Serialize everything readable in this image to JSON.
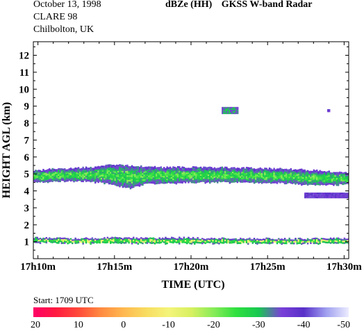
{
  "header": {
    "date": "October 13, 1998",
    "campaign": "CLARE 98",
    "site": "Chilbolton, UK",
    "quantity": "dBZe (HH)",
    "instrument": "GKSS  W-band Radar"
  },
  "chart_data": {
    "type": "heatmap",
    "title": "dBZe (HH)   GKSS  W-band Radar",
    "xlabel": "TIME (UTC)",
    "ylabel": "HEIGHT AGL (km)",
    "xlim_minutes_after_17h": [
      9.7,
      30.3
    ],
    "ylim_km": [
      0,
      12.8
    ],
    "x_ticks": [
      {
        "value": 10,
        "label": "17h10m"
      },
      {
        "value": 15,
        "label": "17h15m"
      },
      {
        "value": 20,
        "label": "17h20m"
      },
      {
        "value": 25,
        "label": "17h25m"
      },
      {
        "value": 30,
        "label": "17h30m"
      }
    ],
    "y_ticks": [
      1,
      2,
      3,
      4,
      5,
      6,
      7,
      8,
      9,
      10,
      11,
      12
    ],
    "y_tick_labels": [
      "1",
      "2",
      "3",
      "4",
      "5",
      "6",
      "7",
      "8",
      "9",
      "10",
      "11",
      "12"
    ],
    "grid": false,
    "start_label": "Start: 1709 UTC",
    "colorbar": {
      "range_dbz": [
        20,
        -50
      ],
      "tick_values": [
        20,
        10,
        0,
        -10,
        -20,
        -30,
        -40,
        -50
      ],
      "tick_labels": [
        "20",
        "10",
        "0",
        "-10",
        "-20",
        "-30",
        "-40",
        "-50"
      ],
      "stops": [
        {
          "dbz": 20,
          "color": "#ff0066"
        },
        {
          "dbz": 15,
          "color": "#ff1a40"
        },
        {
          "dbz": 10,
          "color": "#ff4a3a"
        },
        {
          "dbz": 5,
          "color": "#ff8a40"
        },
        {
          "dbz": 0,
          "color": "#ffb850"
        },
        {
          "dbz": -5,
          "color": "#f8dc60"
        },
        {
          "dbz": -10,
          "color": "#f4f47a"
        },
        {
          "dbz": -15,
          "color": "#d8f060"
        },
        {
          "dbz": -20,
          "color": "#88ec58"
        },
        {
          "dbz": -25,
          "color": "#30e040"
        },
        {
          "dbz": -30,
          "color": "#18c850"
        },
        {
          "dbz": -35,
          "color": "#7a40d8"
        },
        {
          "dbz": -40,
          "color": "#5830c8"
        },
        {
          "dbz": -45,
          "color": "#a0a0f0"
        },
        {
          "dbz": -50,
          "color": "#ececff"
        }
      ]
    },
    "echo_layers": [
      {
        "name": "upper-cloud-layer",
        "base_km": [
          [
            9.7,
            4.55
          ],
          [
            11,
            4.6
          ],
          [
            13,
            4.6
          ],
          [
            14.5,
            4.5
          ],
          [
            15.3,
            4.3
          ],
          [
            16,
            4.2
          ],
          [
            17,
            4.45
          ],
          [
            19,
            4.5
          ],
          [
            21,
            4.55
          ],
          [
            23,
            4.55
          ],
          [
            25,
            4.5
          ],
          [
            26.5,
            4.5
          ],
          [
            27.5,
            4.4
          ],
          [
            30.3,
            4.4
          ]
        ],
        "top_km": [
          [
            9.7,
            5.2
          ],
          [
            11,
            5.3
          ],
          [
            12.5,
            5.35
          ],
          [
            14,
            5.45
          ],
          [
            15,
            5.55
          ],
          [
            16,
            5.5
          ],
          [
            17,
            5.45
          ],
          [
            18,
            5.4
          ],
          [
            20,
            5.4
          ],
          [
            22,
            5.4
          ],
          [
            24,
            5.35
          ],
          [
            26,
            5.3
          ],
          [
            27.5,
            5.25
          ],
          [
            29,
            5.15
          ],
          [
            30.3,
            5.05
          ]
        ],
        "typical_dbz": -27,
        "core_dbz": -22
      },
      {
        "name": "low-cloud-layer",
        "base_km": [
          [
            9.7,
            1.0
          ],
          [
            12,
            0.95
          ],
          [
            15,
            0.95
          ],
          [
            19,
            0.95
          ],
          [
            22,
            0.95
          ],
          [
            26,
            0.95
          ],
          [
            30.3,
            0.95
          ]
        ],
        "top_km": [
          [
            9.7,
            1.25
          ],
          [
            11,
            1.2
          ],
          [
            13,
            1.2
          ],
          [
            15,
            1.25
          ],
          [
            17,
            1.22
          ],
          [
            19,
            1.25
          ],
          [
            21,
            1.2
          ],
          [
            24,
            1.2
          ],
          [
            27,
            1.18
          ],
          [
            30.3,
            1.2
          ]
        ],
        "typical_dbz": -25,
        "core_dbz": -12
      }
    ],
    "echo_patches": [
      {
        "name": "lower-trailing-layer",
        "x0": 27.4,
        "x1": 30.3,
        "y0": 3.6,
        "y1": 3.9,
        "dbz": -38
      },
      {
        "name": "high-echo-cell",
        "x0": 22.0,
        "x1": 23.0,
        "y0": 8.6,
        "y1": 8.95,
        "dbz": -32
      },
      {
        "name": "high-echo-fleck",
        "x0": 28.9,
        "x1": 29.0,
        "y0": 8.72,
        "y1": 8.82,
        "dbz": -38
      }
    ]
  }
}
